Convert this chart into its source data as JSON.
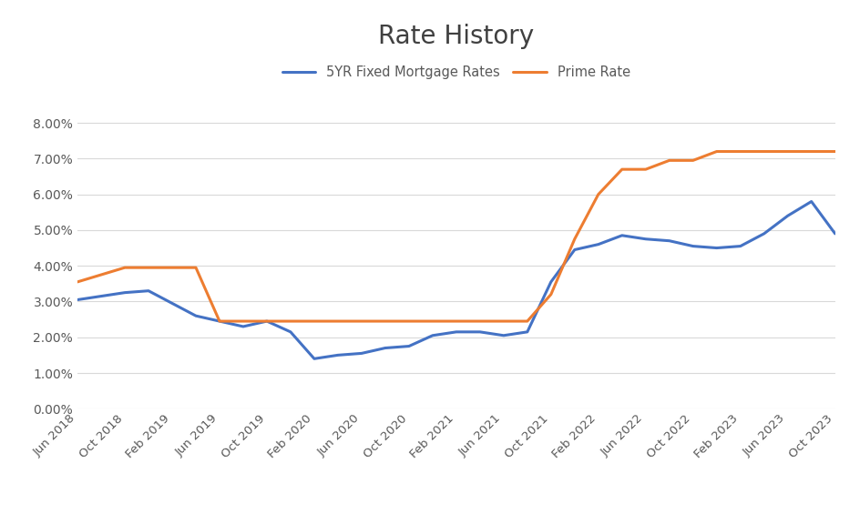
{
  "title": "Rate History",
  "title_fontsize": 20,
  "legend_labels": [
    "5YR Fixed Mortgage Rates",
    "Prime Rate"
  ],
  "fixed_color": "#4472C4",
  "prime_color": "#ED7D31",
  "line_width": 2.2,
  "background_color": "#FFFFFF",
  "ylim": [
    0.0,
    0.088
  ],
  "yticks": [
    0.0,
    0.01,
    0.02,
    0.03,
    0.04,
    0.05,
    0.06,
    0.07,
    0.08
  ],
  "xtick_labels": [
    "Jun 2018",
    "Oct 2018",
    "Feb 2019",
    "Jun 2019",
    "Oct 2019",
    "Feb 2020",
    "Jun 2020",
    "Oct 2020",
    "Feb 2021",
    "Jun 2021",
    "Oct 2021",
    "Feb 2022",
    "Jun 2022",
    "Oct 2022",
    "Feb 2023",
    "Jun 2023",
    "Oct 2023"
  ],
  "fixed_rates": [
    0.0305,
    0.0315,
    0.0325,
    0.033,
    0.0295,
    0.026,
    0.0245,
    0.023,
    0.0245,
    0.0215,
    0.014,
    0.015,
    0.0155,
    0.017,
    0.0175,
    0.0205,
    0.0215,
    0.0215,
    0.0205,
    0.0215,
    0.0355,
    0.0445,
    0.046,
    0.0485,
    0.0475,
    0.047,
    0.0455,
    0.045,
    0.0455,
    0.049,
    0.054,
    0.058,
    0.049
  ],
  "prime_rates": [
    0.0355,
    0.0375,
    0.0395,
    0.0395,
    0.0395,
    0.0395,
    0.0245,
    0.0245,
    0.0245,
    0.0245,
    0.0245,
    0.0245,
    0.0245,
    0.0245,
    0.0245,
    0.0245,
    0.0245,
    0.0245,
    0.0245,
    0.0245,
    0.032,
    0.0475,
    0.06,
    0.067,
    0.067,
    0.0695,
    0.0695,
    0.072,
    0.072,
    0.072,
    0.072,
    0.072,
    0.072
  ],
  "n_points": 33,
  "tick_color": "#595959",
  "label_fontsize": 9.5,
  "ytick_fontsize": 10,
  "grid_color": "#D9D9D9",
  "grid_lw": 0.8
}
